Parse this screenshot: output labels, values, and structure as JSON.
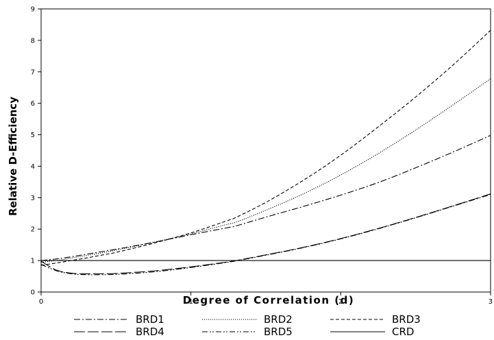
{
  "chart_data": {
    "type": "line",
    "title": "",
    "xlabel": "Degree of Correlation (d)",
    "ylabel": "Relative D-Efficiency",
    "xlim": [
      0,
      3
    ],
    "ylim": [
      0,
      9
    ],
    "xticks": [
      0,
      1,
      2,
      3
    ],
    "yticks": [
      0,
      1,
      2,
      3,
      4,
      5,
      6,
      7,
      8,
      9
    ],
    "grid": false,
    "legend_position": "bottom",
    "x": [
      0,
      0.1,
      0.2,
      0.3,
      0.4,
      0.5,
      0.75,
      1.0,
      1.25,
      1.3,
      1.5,
      1.75,
      2.0,
      2.25,
      2.5,
      2.75,
      3.0
    ],
    "series": [
      {
        "name": "BRD1",
        "dash": "dashdot",
        "values": [
          1.0,
          1.05,
          1.12,
          1.2,
          1.28,
          1.36,
          1.58,
          1.82,
          2.05,
          2.1,
          2.38,
          2.72,
          3.08,
          3.48,
          3.95,
          4.45,
          4.98
        ]
      },
      {
        "name": "BRD2",
        "dash": "dotted",
        "values": [
          0.95,
          1.0,
          1.08,
          1.16,
          1.24,
          1.33,
          1.58,
          1.85,
          2.16,
          2.22,
          2.6,
          3.12,
          3.72,
          4.4,
          5.15,
          5.95,
          6.78
        ]
      },
      {
        "name": "BRD3",
        "dash": "dashed",
        "values": [
          0.85,
          0.92,
          1.0,
          1.08,
          1.17,
          1.26,
          1.55,
          1.88,
          2.28,
          2.37,
          2.85,
          3.55,
          4.35,
          5.25,
          6.2,
          7.22,
          8.32
        ]
      },
      {
        "name": "BRD4",
        "dash": "longdash",
        "values": [
          0.98,
          0.7,
          0.6,
          0.58,
          0.58,
          0.59,
          0.67,
          0.8,
          0.96,
          1.0,
          1.18,
          1.42,
          1.7,
          2.02,
          2.37,
          2.74,
          3.12
        ]
      },
      {
        "name": "BRD5",
        "dash": "dashdotdot",
        "values": [
          0.88,
          0.68,
          0.58,
          0.55,
          0.55,
          0.56,
          0.64,
          0.78,
          0.95,
          0.99,
          1.17,
          1.41,
          1.69,
          2.01,
          2.36,
          2.73,
          3.1
        ]
      },
      {
        "name": "CRD",
        "dash": "solid",
        "values": [
          1,
          1,
          1,
          1,
          1,
          1,
          1,
          1,
          1,
          1,
          1,
          1,
          1,
          1,
          1,
          1,
          1
        ]
      }
    ]
  }
}
